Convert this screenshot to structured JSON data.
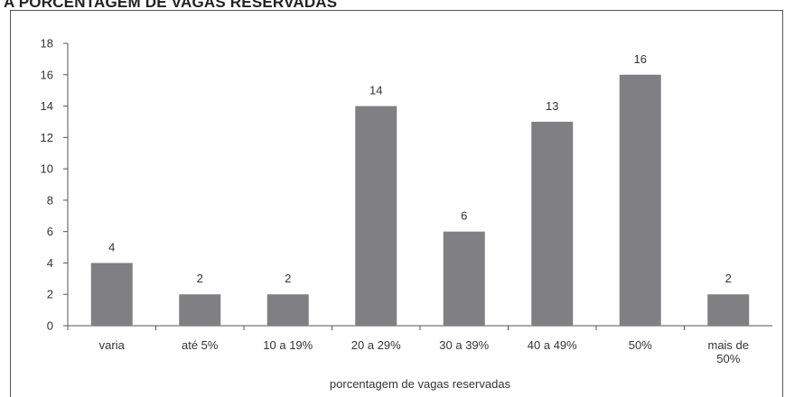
{
  "chart_data": {
    "type": "bar",
    "title": "A PORCENTAGEM DE VAGAS RESERVADAS",
    "categories": [
      "varia",
      "até 5%",
      "10 a 19%",
      "20 a 29%",
      "30 a 39%",
      "40 a 49%",
      "50%",
      "mais de 50%"
    ],
    "category_lines": [
      [
        "varia"
      ],
      [
        "até 5%"
      ],
      [
        "10 a 19%"
      ],
      [
        "20 a 29%"
      ],
      [
        "30 a 39%"
      ],
      [
        "40 a 49%"
      ],
      [
        "50%"
      ],
      [
        "mais de",
        "50%"
      ]
    ],
    "values": [
      4,
      2,
      2,
      14,
      6,
      13,
      16,
      2
    ],
    "data_labels": [
      "4",
      "2",
      "2",
      "14",
      "6",
      "13",
      "16",
      "2"
    ],
    "xlabel": "porcentagem de vagas reservadas",
    "ylabel": "",
    "ylim": [
      0,
      18
    ],
    "yticks": [
      0,
      2,
      4,
      6,
      8,
      10,
      12,
      14,
      16,
      18
    ],
    "grid": false,
    "legend": "none",
    "bar_color": "#808083"
  }
}
